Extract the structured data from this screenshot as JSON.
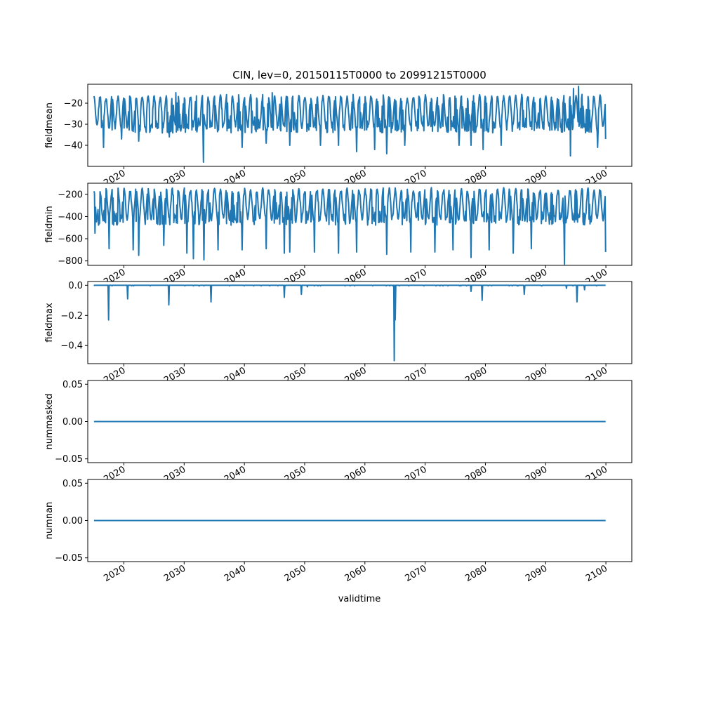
{
  "title": "CIN, lev=0, 20150115T0000 to 20991215T0000",
  "xlabel": "validtime",
  "line_color": "#1f77b4",
  "x_ticks": [
    "2020",
    "2030",
    "2040",
    "2050",
    "2060",
    "2070",
    "2080",
    "2090",
    "2100"
  ],
  "chart_data": [
    {
      "type": "line",
      "ylabel": "fieldmean",
      "x_range": [
        "2015-01-15",
        "2099-12-15"
      ],
      "ylim": [
        -50,
        -11
      ],
      "y_ticks": [
        -20,
        -30,
        -40
      ],
      "sampling": "monthly",
      "series": [
        {
          "approx_range": [
            -48,
            -14
          ],
          "seasonal_amplitude_note": "annual cycle between about -31 and -17",
          "extremes": [
            {
              "x": "2016-08",
              "y": -41
            },
            {
              "x": "2019-08",
              "y": -37
            },
            {
              "x": "2022-06",
              "y": -38
            },
            {
              "x": "2027-07",
              "y": -36
            },
            {
              "x": "2028-08",
              "y": -15
            },
            {
              "x": "2033-03",
              "y": -48
            },
            {
              "x": "2039-08",
              "y": -41
            },
            {
              "x": "2043-08",
              "y": -39
            },
            {
              "x": "2044-08",
              "y": -15
            },
            {
              "x": "2047-07",
              "y": -40
            },
            {
              "x": "2052-08",
              "y": -40
            },
            {
              "x": "2055-08",
              "y": -40
            },
            {
              "x": "2058-08",
              "y": -43
            },
            {
              "x": "2061-08",
              "y": -42
            },
            {
              "x": "2063-08",
              "y": -44
            },
            {
              "x": "2066-08",
              "y": -40
            },
            {
              "x": "2075-08",
              "y": -40
            },
            {
              "x": "2077-08",
              "y": -40
            },
            {
              "x": "2079-08",
              "y": -42
            },
            {
              "x": "2082-08",
              "y": -40
            },
            {
              "x": "2094-02",
              "y": -45
            },
            {
              "x": "2094-08",
              "y": -13
            },
            {
              "x": "2095-06",
              "y": -12
            },
            {
              "x": "2098-08",
              "y": -41
            },
            {
              "x": "2099-12",
              "y": -37
            }
          ]
        }
      ]
    },
    {
      "type": "line",
      "ylabel": "fieldmin",
      "x_range": [
        "2015-01-15",
        "2099-12-15"
      ],
      "ylim": [
        -840,
        -100
      ],
      "y_ticks": [
        -200,
        -400,
        -600,
        -800
      ],
      "sampling": "monthly",
      "series": [
        {
          "approx_range": [
            -830,
            -120
          ],
          "seasonal_amplitude_note": "annual cycle between about -420 and -150",
          "extremes": [
            {
              "x": "2015-03",
              "y": -550
            },
            {
              "x": "2017-07",
              "y": -690
            },
            {
              "x": "2021-07",
              "y": -700
            },
            {
              "x": "2022-06",
              "y": -750
            },
            {
              "x": "2026-08",
              "y": -660
            },
            {
              "x": "2030-06",
              "y": -730
            },
            {
              "x": "2031-07",
              "y": -780
            },
            {
              "x": "2033-04",
              "y": -790
            },
            {
              "x": "2035-08",
              "y": -700
            },
            {
              "x": "2039-08",
              "y": -700
            },
            {
              "x": "2043-08",
              "y": -690
            },
            {
              "x": "2046-08",
              "y": -730
            },
            {
              "x": "2047-07",
              "y": -720
            },
            {
              "x": "2051-08",
              "y": -720
            },
            {
              "x": "2055-08",
              "y": -730
            },
            {
              "x": "2058-08",
              "y": -720
            },
            {
              "x": "2063-08",
              "y": -740
            },
            {
              "x": "2067-08",
              "y": -720
            },
            {
              "x": "2071-08",
              "y": -720
            },
            {
              "x": "2074-08",
              "y": -700
            },
            {
              "x": "2077-08",
              "y": -770
            },
            {
              "x": "2080-08",
              "y": -700
            },
            {
              "x": "2084-08",
              "y": -730
            },
            {
              "x": "2087-08",
              "y": -690
            },
            {
              "x": "2093-02",
              "y": -830
            },
            {
              "x": "2099-12",
              "y": -720
            }
          ]
        }
      ]
    },
    {
      "type": "line",
      "ylabel": "fieldmax",
      "x_range": [
        "2015-01-15",
        "2099-12-15"
      ],
      "ylim": [
        -0.52,
        0.025
      ],
      "y_ticks": [
        0.0,
        -0.2,
        -0.4
      ],
      "y_tick_labels": [
        "0.0",
        "−0.2",
        "−0.4"
      ],
      "sampling": "monthly",
      "series": [
        {
          "baseline": 0.0,
          "dips": [
            {
              "x": "2017-06",
              "y": -0.23
            },
            {
              "x": "2020-08",
              "y": -0.09
            },
            {
              "x": "2027-06",
              "y": -0.13
            },
            {
              "x": "2034-06",
              "y": -0.11
            },
            {
              "x": "2046-08",
              "y": -0.08
            },
            {
              "x": "2049-06",
              "y": -0.06
            },
            {
              "x": "2050-06",
              "y": -0.01
            },
            {
              "x": "2064-11",
              "y": -0.5
            },
            {
              "x": "2065-01",
              "y": -0.23
            },
            {
              "x": "2077-08",
              "y": -0.04
            },
            {
              "x": "2079-06",
              "y": -0.1
            },
            {
              "x": "2086-06",
              "y": -0.06
            },
            {
              "x": "2093-06",
              "y": -0.02
            },
            {
              "x": "2095-03",
              "y": -0.11
            },
            {
              "x": "2096-06",
              "y": -0.03
            }
          ]
        }
      ]
    },
    {
      "type": "line",
      "ylabel": "nummasked",
      "x_range": [
        "2015-01-15",
        "2099-12-15"
      ],
      "ylim": [
        -0.055,
        0.055
      ],
      "y_ticks": [
        0.05,
        0.0,
        -0.05
      ],
      "y_tick_labels": [
        "0.05",
        "0.00",
        "−0.05"
      ],
      "series": [
        {
          "constant": 0.0
        }
      ]
    },
    {
      "type": "line",
      "ylabel": "numnan",
      "x_range": [
        "2015-01-15",
        "2099-12-15"
      ],
      "ylim": [
        -0.055,
        0.055
      ],
      "y_ticks": [
        0.05,
        0.0,
        -0.05
      ],
      "y_tick_labels": [
        "0.05",
        "0.00",
        "−0.05"
      ],
      "series": [
        {
          "constant": 0.0
        }
      ]
    }
  ]
}
